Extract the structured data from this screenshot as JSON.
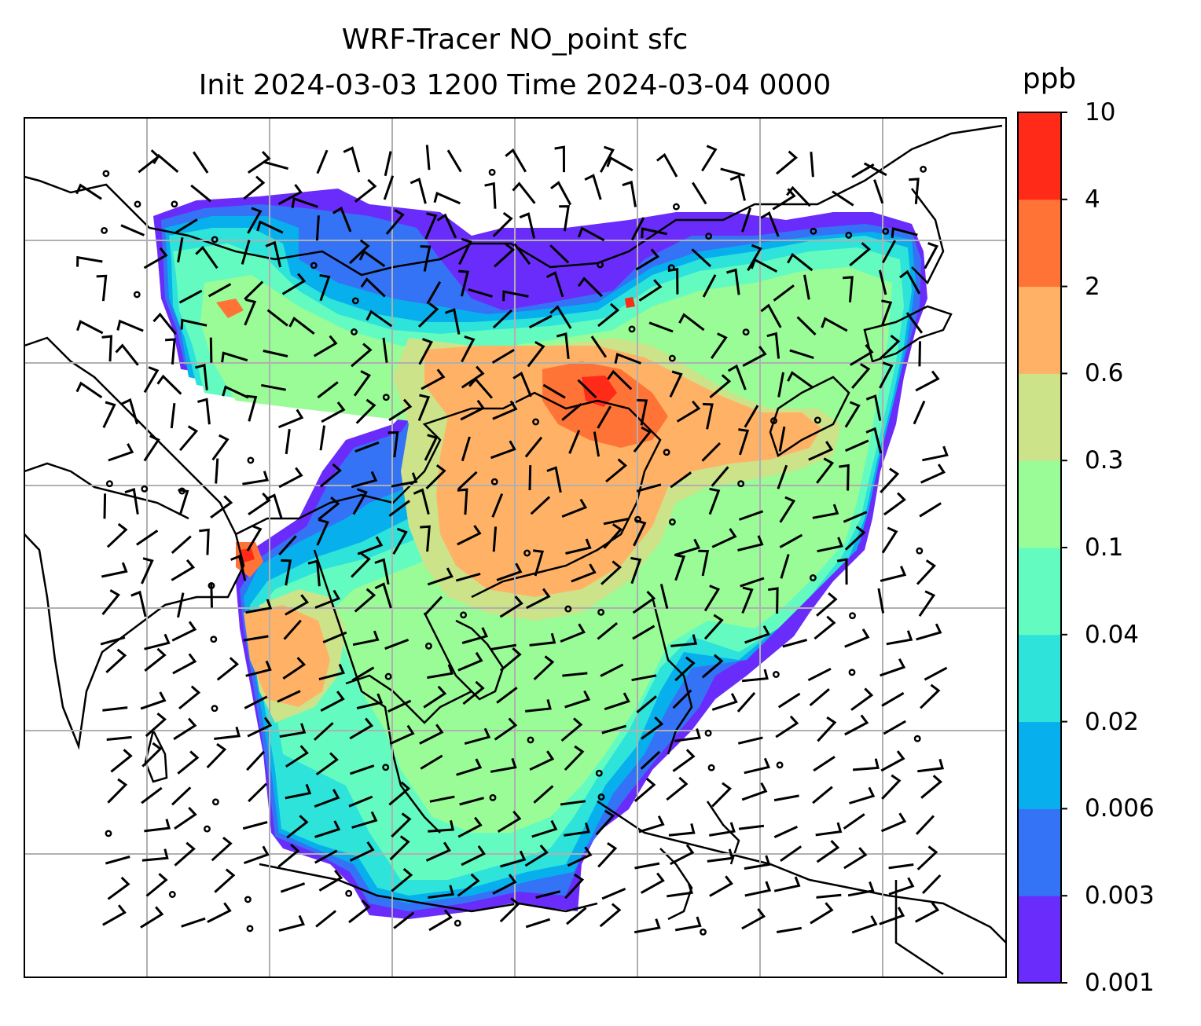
{
  "title_line1": "WRF-Tracer NO_point sfc",
  "title_line2": "Init 2024-03-03 1200 Time 2024-03-04 0000",
  "colorbar": {
    "unit": "ppb",
    "ticks": [
      "0.001",
      "0.003",
      "0.006",
      "0.02",
      "0.04",
      "0.1",
      "0.3",
      "0.6",
      "2",
      "4",
      "10"
    ],
    "colors": [
      "#6a2cfb",
      "#3473f5",
      "#07b0ec",
      "#2ee3da",
      "#64fbc0",
      "#99fc96",
      "#cce38a",
      "#ffb266",
      "#ff7436",
      "#ff2a17"
    ]
  },
  "map": {
    "projection": "Lambert conformal, East and Southeast Asia",
    "grid": true,
    "field": "surface NO_point tracer concentration (filled contours)",
    "overlays": [
      "coastlines",
      "country borders",
      "wind barbs"
    ]
  }
}
